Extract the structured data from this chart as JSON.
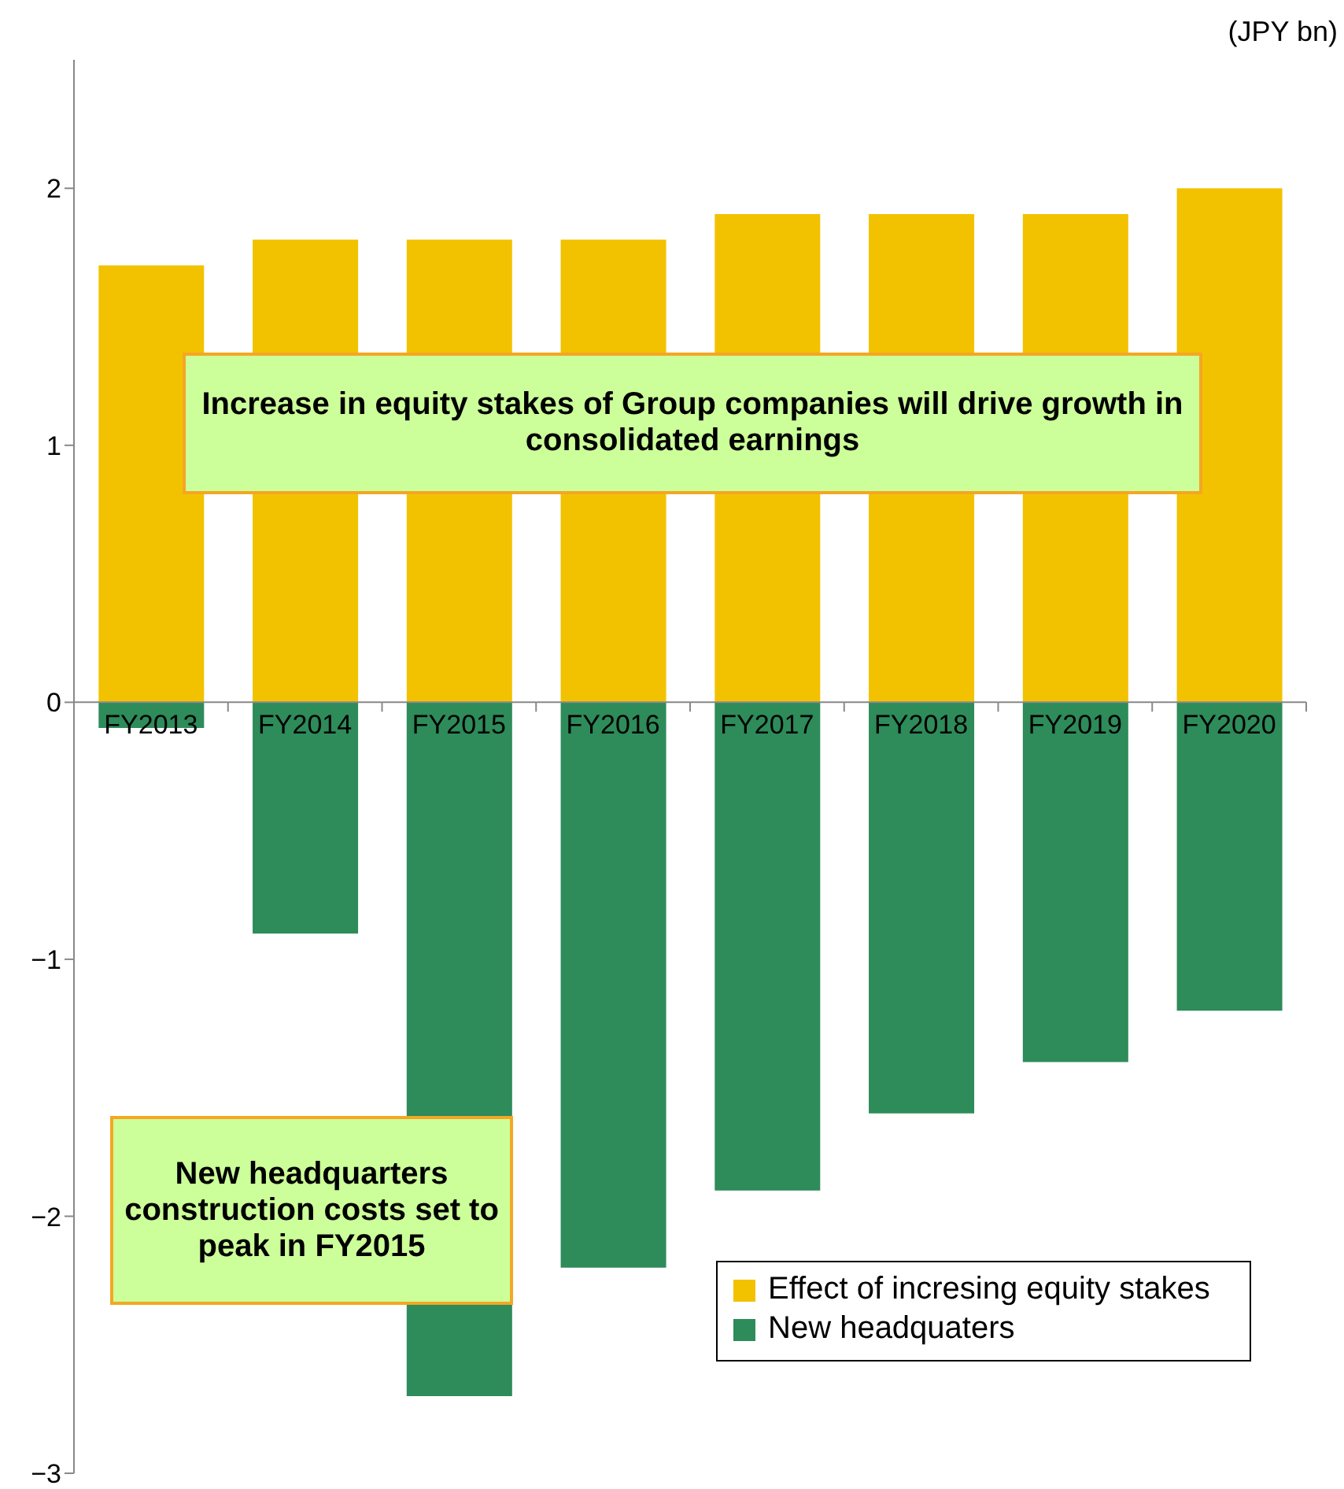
{
  "chart_data": {
    "type": "bar",
    "stacked": true,
    "categories": [
      "FY2013",
      "FY2014",
      "FY2015",
      "FY2016",
      "FY2017",
      "FY2018",
      "FY2019",
      "FY2020"
    ],
    "series": [
      {
        "name": "Effect of incresing equity stakes",
        "color": "#f2c200",
        "values": [
          1.7,
          1.8,
          1.8,
          1.8,
          1.9,
          1.9,
          1.9,
          2.0
        ]
      },
      {
        "name": "New headquaters",
        "color": "#2e8b5a",
        "values": [
          -0.1,
          -0.9,
          -2.7,
          -2.2,
          -1.9,
          -1.6,
          -1.4,
          -1.2
        ]
      }
    ],
    "ylim": [
      -3,
      2.5
    ],
    "yticks": [
      {
        "value": -3,
        "label": "−3"
      },
      {
        "value": -2,
        "label": "−2"
      },
      {
        "value": -1,
        "label": "−1"
      },
      0,
      1,
      2
    ],
    "ylabel": "(JPY bn)",
    "annotations": [
      "Increase in equity stakes of Group companies will drive growth in consolidated earnings",
      "New headquarters construction costs set to peak in FY2015"
    ],
    "legend": "bottom right"
  }
}
